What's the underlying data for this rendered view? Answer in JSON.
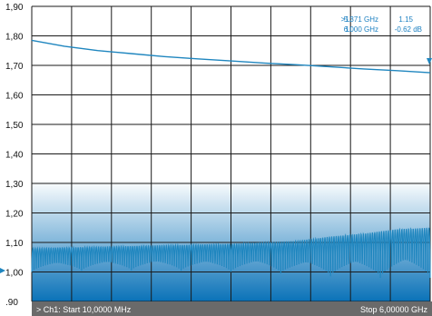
{
  "colors": {
    "trace": "#1f86bf",
    "grid": "#1a1a1a",
    "footer_bg": "#6a6a6a",
    "gradient_top": "#ffffff",
    "gradient_bottom": "#0a72b8",
    "marker_text": "#1a7fc0"
  },
  "markers": {
    "active_label": ">1:",
    "active_freq": "5.371 GHz",
    "active_value": "1.15",
    "ref_label": "1:",
    "ref_freq": "6.000 GHz",
    "ref_value": "-0.62 dB"
  },
  "footer": {
    "start_text": "> Ch1: Start 10,0000 MHz",
    "stop_text": "Stop 6,00000 GHz"
  },
  "chart_data": {
    "type": "line",
    "title": "",
    "xlabel": "",
    "ylabel": "",
    "xlim": [
      0.01,
      6.0
    ],
    "x_unit": "GHz",
    "ylim": [
      0.9,
      1.9
    ],
    "yticks": [
      ".90",
      "1,00",
      "1,10",
      "1,20",
      "1,30",
      "1,40",
      "1,50",
      "1,60",
      "1,70",
      "1,80",
      "1,90"
    ],
    "grid": true,
    "reference_marker_y": 1.0,
    "series": [
      {
        "name": "",
        "x": [
          0.01,
          0.5,
          1.0,
          1.5,
          2.0,
          2.5,
          3.0,
          3.5,
          4.0,
          4.5,
          5.0,
          5.5,
          6.0
        ],
        "y": [
          1.785,
          1.765,
          1.75,
          1.74,
          1.73,
          1.722,
          1.715,
          1.708,
          1.702,
          1.695,
          1.688,
          1.682,
          1.675
        ]
      },
      {
        "name": "",
        "x": [
          0.01,
          1.0,
          2.0,
          3.0,
          3.5,
          4.0,
          4.5,
          5.0,
          5.5,
          6.0
        ],
        "y_min": [
          1.0,
          1.005,
          1.005,
          1.0,
          1.0,
          0.99,
          0.985,
          0.98,
          0.98,
          0.98
        ],
        "y_max": [
          1.08,
          1.085,
          1.09,
          1.095,
          1.1,
          1.105,
          1.12,
          1.13,
          1.145,
          1.15
        ],
        "oscillation_cycles": 88
      }
    ]
  }
}
